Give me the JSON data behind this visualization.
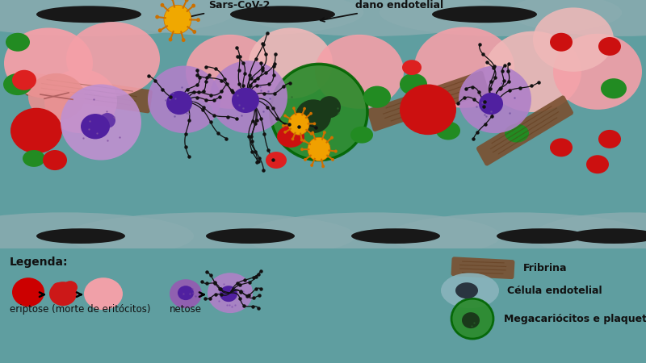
{
  "bg_color": "#5f9ea0",
  "main_panel_bg": "#ffffff",
  "legend_panel_bg": "#f8f8f0",
  "label_sars": "Sars-CoV-2",
  "label_dano": "dano endotelial",
  "label_legenda": "Legenda:",
  "label_eriptose": "eriptose (morte de eritócitos)",
  "label_netose": "netose",
  "label_fribrina": "Fribrina",
  "label_celula": "Célula endotelial",
  "label_mega": "Megacariócitos e plaquetas",
  "pink": "#f4a0a8",
  "pink2": "#f0b8b8",
  "red_dark": "#cc1010",
  "red_bright": "#ee2222",
  "green_cell": "#2a8a2a",
  "green_small": "#228B22",
  "purple_net": "#b080c8",
  "purple_nucleus": "#6030a0",
  "purple_spotted": "#c090d0",
  "purple_dark": "#5020a0",
  "brown_fibrin": "#7a5030",
  "gray_wall": "#8aacb0",
  "gray_dark_wall": "#6080a0",
  "black_patch": "#181818",
  "orange_virus": "#f0a000",
  "yellow_spikes": "#e08000"
}
